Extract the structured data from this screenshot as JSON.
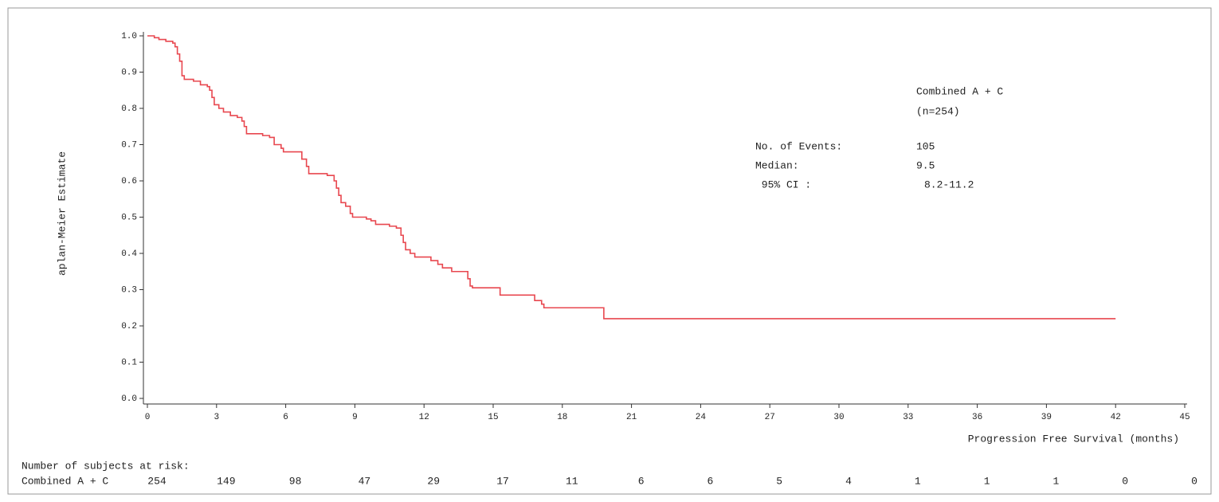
{
  "chart_data": {
    "type": "line",
    "step": true,
    "x_label": "Progression Free Survival (months)",
    "y_label": "aplan-Meier Estimate",
    "xlim": [
      0,
      45
    ],
    "ylim": [
      0,
      1
    ],
    "xticks": [
      0,
      3,
      6,
      9,
      12,
      15,
      18,
      21,
      24,
      27,
      30,
      33,
      36,
      39,
      42,
      45
    ],
    "yticks": [
      {
        "value": 0,
        "label": "0.0"
      },
      0.1,
      0.2,
      0.3,
      0.4,
      0.5,
      0.6,
      0.7,
      0.8,
      0.9,
      {
        "value": 1,
        "label": "1.0"
      }
    ],
    "series": [
      {
        "color": "#e8474f",
        "x": [
          0,
          0.3,
          0.5,
          0.8,
          1.1,
          1.2,
          1.3,
          1.4,
          1.5,
          1.6,
          2.0,
          2.3,
          2.6,
          2.7,
          2.8,
          2.9,
          3.1,
          3.3,
          3.6,
          3.9,
          4.1,
          4.2,
          4.3,
          5.0,
          5.3,
          5.5,
          5.8,
          5.9,
          6.7,
          6.9,
          7.0,
          7.8,
          8.1,
          8.2,
          8.3,
          8.4,
          8.6,
          8.8,
          8.9,
          9.5,
          9.7,
          9.9,
          10.5,
          10.8,
          11.0,
          11.1,
          11.2,
          11.4,
          11.6,
          12.3,
          12.6,
          12.8,
          13.2,
          13.9,
          14.0,
          14.1,
          15.3,
          16.8,
          17.1,
          17.2,
          19.8,
          42.0
        ],
        "values": [
          1.0,
          0.995,
          0.99,
          0.985,
          0.98,
          0.97,
          0.95,
          0.93,
          0.89,
          0.88,
          0.875,
          0.865,
          0.86,
          0.85,
          0.83,
          0.81,
          0.8,
          0.79,
          0.78,
          0.775,
          0.765,
          0.75,
          0.73,
          0.725,
          0.72,
          0.7,
          0.69,
          0.68,
          0.66,
          0.64,
          0.62,
          0.615,
          0.6,
          0.58,
          0.56,
          0.54,
          0.53,
          0.51,
          0.5,
          0.495,
          0.49,
          0.48,
          0.475,
          0.47,
          0.45,
          0.43,
          0.41,
          0.4,
          0.39,
          0.38,
          0.37,
          0.36,
          0.35,
          0.33,
          0.31,
          0.305,
          0.285,
          0.27,
          0.26,
          0.25,
          0.22,
          0.22
        ]
      }
    ],
    "annotations": [
      {
        "text": "Combined A + C"
      },
      {
        "text": "(n=254)"
      },
      {
        "text": "No. of Events:"
      },
      {
        "text": "105"
      },
      {
        "text": "Median:"
      },
      {
        "text": "9.5"
      },
      {
        "text": " 95% CI :"
      },
      {
        "text": "8.2-11.2"
      }
    ],
    "risk_table": {
      "title": "Number of subjects at risk:",
      "label": "Combined A + C",
      "values": [
        254,
        149,
        98,
        47,
        29,
        17,
        11,
        6,
        6,
        5,
        4,
        1,
        1,
        1,
        0,
        0
      ]
    }
  }
}
